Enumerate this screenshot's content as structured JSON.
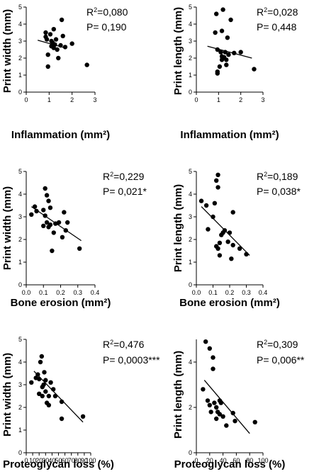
{
  "chart_data": [
    {
      "type": "scatter",
      "title": "",
      "xlabel": "Inflammation (mm²)",
      "ylabel": "Print width (mm)",
      "xlim": [
        0,
        3
      ],
      "ylim": [
        0,
        5
      ],
      "xticks": [
        "0",
        "1",
        "2",
        "3"
      ],
      "yticks": [
        "0",
        "1",
        "2",
        "3",
        "4",
        "5"
      ],
      "r2_prefix": "R",
      "r2_sup": "2",
      "r2_value": "=0,080",
      "p_text": "P= 0,190",
      "trendline": {
        "x": [
          0.5,
          1.7
        ],
        "y": [
          3.05,
          2.6
        ]
      },
      "points": [
        [
          0.85,
          3.5
        ],
        [
          0.85,
          3.25
        ],
        [
          0.9,
          3.1
        ],
        [
          0.95,
          2.2
        ],
        [
          0.95,
          1.5
        ],
        [
          1.05,
          3.4
        ],
        [
          1.1,
          3.0
        ],
        [
          1.1,
          2.7
        ],
        [
          1.15,
          2.9
        ],
        [
          1.2,
          3.7
        ],
        [
          1.2,
          2.6
        ],
        [
          1.25,
          2.8
        ],
        [
          1.3,
          3.1
        ],
        [
          1.35,
          2.5
        ],
        [
          1.4,
          2.0
        ],
        [
          1.5,
          2.75
        ],
        [
          1.55,
          4.25
        ],
        [
          1.6,
          3.3
        ],
        [
          1.7,
          2.65
        ],
        [
          2.0,
          2.85
        ],
        [
          2.65,
          1.6
        ]
      ]
    },
    {
      "type": "scatter",
      "title": "",
      "xlabel": "Inflammation (mm²)",
      "ylabel": "Print length (mm)",
      "xlim": [
        0,
        3
      ],
      "ylim": [
        0,
        5
      ],
      "xticks": [
        "0",
        "1",
        "2",
        "3"
      ],
      "yticks": [
        "0",
        "1",
        "2",
        "3",
        "4",
        "5"
      ],
      "r2_prefix": "R",
      "r2_sup": "2",
      "r2_value": "=0,028",
      "p_text": "P= 0,448",
      "trendline": {
        "x": [
          0.5,
          2.5
        ],
        "y": [
          2.7,
          2.0
        ]
      },
      "points": [
        [
          0.85,
          3.5
        ],
        [
          0.9,
          4.6
        ],
        [
          0.95,
          2.5
        ],
        [
          0.95,
          1.2
        ],
        [
          0.95,
          1.1
        ],
        [
          1.05,
          1.5
        ],
        [
          1.1,
          2.35
        ],
        [
          1.15,
          3.6
        ],
        [
          1.15,
          2.1
        ],
        [
          1.15,
          1.9
        ],
        [
          1.2,
          4.85
        ],
        [
          1.25,
          2.05
        ],
        [
          1.3,
          2.35
        ],
        [
          1.35,
          1.6
        ],
        [
          1.35,
          1.9
        ],
        [
          1.4,
          3.2
        ],
        [
          1.45,
          2.2
        ],
        [
          1.55,
          4.25
        ],
        [
          1.7,
          2.3
        ],
        [
          2.0,
          2.35
        ],
        [
          2.6,
          1.35
        ]
      ]
    },
    {
      "type": "scatter",
      "title": "",
      "xlabel": "Bone erosion (mm²)",
      "ylabel": "Print width (mm)",
      "xlim": [
        0,
        0.4
      ],
      "ylim": [
        0,
        5
      ],
      "xticks": [
        "0.0",
        "0.1",
        "0.2",
        "0.3",
        "0.4"
      ],
      "yticks": [
        "0",
        "1",
        "2",
        "3",
        "4",
        "5"
      ],
      "r2_prefix": "R",
      "r2_sup": "2",
      "r2_value": "=0,229",
      "p_text": "P= 0,021*",
      "trendline": {
        "x": [
          0.03,
          0.32
        ],
        "y": [
          3.45,
          1.95
        ]
      },
      "points": [
        [
          0.03,
          3.1
        ],
        [
          0.05,
          3.45
        ],
        [
          0.06,
          3.25
        ],
        [
          0.1,
          3.3
        ],
        [
          0.1,
          2.6
        ],
        [
          0.11,
          4.25
        ],
        [
          0.11,
          3.05
        ],
        [
          0.12,
          3.95
        ],
        [
          0.12,
          2.75
        ],
        [
          0.13,
          3.7
        ],
        [
          0.13,
          2.55
        ],
        [
          0.14,
          3.4
        ],
        [
          0.14,
          2.65
        ],
        [
          0.15,
          1.5
        ],
        [
          0.16,
          2.3
        ],
        [
          0.17,
          2.7
        ],
        [
          0.19,
          2.75
        ],
        [
          0.21,
          2.1
        ],
        [
          0.22,
          3.2
        ],
        [
          0.23,
          2.4
        ],
        [
          0.24,
          2.75
        ],
        [
          0.31,
          1.6
        ]
      ]
    },
    {
      "type": "scatter",
      "title": "",
      "xlabel": "Bone erosion (mm²)",
      "ylabel": "Print length (mm)",
      "xlim": [
        0,
        0.4
      ],
      "ylim": [
        0,
        5
      ],
      "xticks": [
        "0.0",
        "0.1",
        "0.2",
        "0.3",
        "0.4"
      ],
      "yticks": [
        "0",
        "1",
        "2",
        "3",
        "4",
        "5"
      ],
      "r2_prefix": "R",
      "r2_sup": "2",
      "r2_value": "=0,189",
      "p_text": "P= 0,038*",
      "trendline": {
        "x": [
          0.03,
          0.32
        ],
        "y": [
          3.45,
          1.3
        ]
      },
      "points": [
        [
          0.03,
          3.7
        ],
        [
          0.06,
          3.5
        ],
        [
          0.07,
          2.45
        ],
        [
          0.1,
          3.0
        ],
        [
          0.11,
          3.6
        ],
        [
          0.12,
          4.6
        ],
        [
          0.12,
          1.7
        ],
        [
          0.13,
          4.85
        ],
        [
          0.13,
          4.3
        ],
        [
          0.13,
          1.6
        ],
        [
          0.14,
          1.85
        ],
        [
          0.14,
          1.3
        ],
        [
          0.15,
          2.2
        ],
        [
          0.16,
          2.3
        ],
        [
          0.17,
          2.4
        ],
        [
          0.19,
          1.9
        ],
        [
          0.2,
          2.3
        ],
        [
          0.21,
          1.15
        ],
        [
          0.22,
          1.75
        ],
        [
          0.22,
          3.2
        ],
        [
          0.26,
          1.6
        ],
        [
          0.3,
          1.35
        ]
      ]
    },
    {
      "type": "scatter",
      "title": "",
      "xlabel": "Proteoglycan loss (%)",
      "ylabel": "Print width (mm)",
      "xlim": [
        0,
        100
      ],
      "ylim": [
        0,
        5
      ],
      "xticks": [
        "0",
        "10",
        "20",
        "30",
        "40",
        "50",
        "60",
        "70",
        "80",
        "90",
        "100"
      ],
      "yticks": [
        "0",
        "1",
        "2",
        "3",
        "4",
        "5"
      ],
      "r2_prefix": "R",
      "r2_sup": "2",
      "r2_value": "=0,476",
      "p_text": "P= 0,0003***",
      "trendline": {
        "x": [
          12,
          88
        ],
        "y": [
          3.6,
          1.35
        ]
      },
      "points": [
        [
          8,
          3.1
        ],
        [
          15,
          3.3
        ],
        [
          18,
          3.45
        ],
        [
          20,
          3.25
        ],
        [
          20,
          2.6
        ],
        [
          22,
          4.0
        ],
        [
          24,
          4.25
        ],
        [
          25,
          2.9
        ],
        [
          25,
          2.5
        ],
        [
          27,
          3.0
        ],
        [
          28,
          3.55
        ],
        [
          30,
          3.2
        ],
        [
          30,
          2.7
        ],
        [
          32,
          2.2
        ],
        [
          35,
          2.1
        ],
        [
          35,
          2.5
        ],
        [
          38,
          3.1
        ],
        [
          42,
          2.8
        ],
        [
          45,
          2.5
        ],
        [
          55,
          2.25
        ],
        [
          55,
          1.5
        ],
        [
          88,
          1.6
        ]
      ]
    },
    {
      "type": "scatter",
      "title": "",
      "xlabel": "Proteoglycan loss (%)",
      "ylabel": "Print length (mm)",
      "xlim": [
        0,
        100
      ],
      "ylim": [
        0,
        5
      ],
      "xticks": [
        "0",
        "20",
        "40",
        "60",
        "80",
        "100"
      ],
      "yticks": [
        "0",
        "2",
        "4"
      ],
      "r2_prefix": "R",
      "r2_sup": "2",
      "r2_value": "=0,309",
      "p_text": "P= 0,006**",
      "trendline": {
        "x": [
          12,
          80
        ],
        "y": [
          3.2,
          0.85
        ]
      },
      "points": [
        [
          10,
          2.8
        ],
        [
          14,
          4.9
        ],
        [
          17,
          2.3
        ],
        [
          20,
          4.6
        ],
        [
          20,
          2.1
        ],
        [
          22,
          1.8
        ],
        [
          25,
          4.2
        ],
        [
          25,
          3.7
        ],
        [
          27,
          2.2
        ],
        [
          30,
          2.0
        ],
        [
          30,
          1.5
        ],
        [
          32,
          1.8
        ],
        [
          35,
          2.3
        ],
        [
          35,
          1.7
        ],
        [
          37,
          2.2
        ],
        [
          40,
          1.6
        ],
        [
          45,
          1.2
        ],
        [
          55,
          1.75
        ],
        [
          58,
          1.4
        ],
        [
          88,
          1.35
        ]
      ]
    }
  ]
}
